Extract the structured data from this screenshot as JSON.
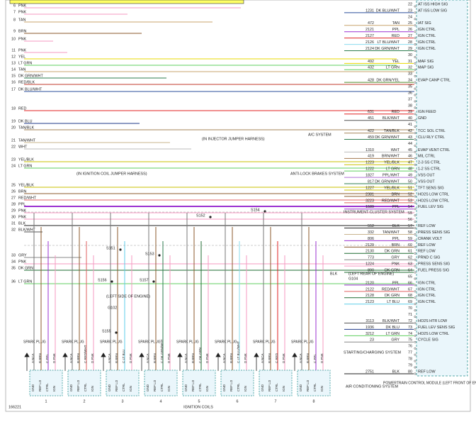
{
  "header": {
    "module": "POWERTRAIN CONTROL MODULE (LEFT FRONT OF ENGINE COMPT)",
    "figure_id": "166221",
    "coils_title": "IGNITION COILS"
  },
  "left_pins": [
    {
      "pin": 6,
      "color": "PNK"
    },
    {
      "pin": 7,
      "color": "PNK"
    },
    {
      "pin": 8,
      "color": "TAN"
    },
    {
      "pin": 9,
      "color": "BRN"
    },
    {
      "pin": 10,
      "color": "PNK"
    },
    {
      "pin": 11,
      "color": "PNK"
    },
    {
      "pin": 12,
      "color": "YEL"
    },
    {
      "pin": 13,
      "color": "LT GRN"
    },
    {
      "pin": 14,
      "color": "TAN"
    },
    {
      "pin": 15,
      "color": "DK GRN/WHT"
    },
    {
      "pin": 16,
      "color": "RED/BLK"
    },
    {
      "pin": 17,
      "color": "DK BLU/WHT"
    },
    {
      "pin": 18,
      "color": "RED"
    },
    {
      "pin": 19,
      "color": "DK BLU"
    },
    {
      "pin": 20,
      "color": "TAN/BLK"
    },
    {
      "pin": 21,
      "color": "TAN/WHT"
    },
    {
      "pin": 22,
      "color": "WHT"
    },
    {
      "pin": 23,
      "color": "YEL/BLK"
    },
    {
      "pin": 24,
      "color": "LT GRN"
    },
    {
      "pin": 25,
      "color": "YEL/BLK"
    },
    {
      "pin": 26,
      "color": "BRN"
    },
    {
      "pin": 27,
      "color": "RED/WHT"
    },
    {
      "pin": 28,
      "color": "PPL"
    },
    {
      "pin": 29,
      "color": "PNK"
    },
    {
      "pin": 30,
      "color": "PNK"
    },
    {
      "pin": 31,
      "color": "BLK"
    },
    {
      "pin": 32,
      "color": "BLK/WHT"
    },
    {
      "pin": 33,
      "color": "GRY"
    },
    {
      "pin": 34,
      "color": "PNK"
    },
    {
      "pin": 35,
      "color": "DK GRN"
    },
    {
      "pin": 36,
      "color": "LT GRN"
    }
  ],
  "pcm_pins": [
    {
      "pin": 22,
      "function": "AT ISS HIGH SIG"
    },
    {
      "pin": 23,
      "circuit": "1231",
      "color": "DK BLU/WHT",
      "function": "AT ISS LOW SIG"
    },
    {
      "pin": 24
    },
    {
      "pin": 25,
      "circuit": "472",
      "color": "TAN",
      "function": "IAT SIG"
    },
    {
      "pin": 26,
      "circuit": "2121",
      "color": "PPL",
      "function": "IGN CTRL"
    },
    {
      "pin": 27,
      "circuit": "2127",
      "color": "RED",
      "function": "IGN CTRL"
    },
    {
      "pin": 28,
      "circuit": "2126",
      "color": "LT BLU/WHT",
      "function": "IGN CTRL"
    },
    {
      "pin": 29,
      "circuit": "2124",
      "color": "DK GRN/WHT",
      "function": "IGN CTRL"
    },
    {
      "pin": 30
    },
    {
      "pin": 31,
      "circuit": "492",
      "color": "YEL",
      "function": "MAF SIG"
    },
    {
      "pin": 32,
      "circuit": "432",
      "color": "LT GRN",
      "function": "MAP SIG"
    },
    {
      "pin": 33
    },
    {
      "pin": 34,
      "circuit": "428",
      "color": "DK GRN/YEL",
      "function": "EVAP CANP CTRL"
    },
    {
      "pin": 35
    },
    {
      "pin": 36
    },
    {
      "pin": 37
    },
    {
      "pin": 38
    },
    {
      "pin": 39,
      "circuit": "631",
      "color": "RED",
      "function": "IGN FEED"
    },
    {
      "pin": 40,
      "circuit": "451",
      "color": "BLK/WHT",
      "function": "GND"
    },
    {
      "pin": 41
    },
    {
      "pin": 42,
      "circuit": "422",
      "color": "TAN/BLK",
      "function": "TCC SOL CTRL"
    },
    {
      "pin": 43,
      "circuit": "459",
      "color": "DK GRN/WHT",
      "function": "CLU RLY CTRL"
    },
    {
      "pin": 44
    },
    {
      "pin": 45,
      "circuit": "1310",
      "color": "WHT",
      "function": "EVAP VENT CTRL"
    },
    {
      "pin": 46,
      "circuit": "419",
      "color": "BRN/WHT",
      "function": "MIL CTRL"
    },
    {
      "pin": 47,
      "circuit": "1223",
      "color": "YEL/BLK",
      "function": "2-3 SS CTRL"
    },
    {
      "pin": 48,
      "circuit": "1222",
      "color": "LT GRN",
      "function": "1-2 SS CTRL"
    },
    {
      "pin": 49,
      "circuit": "1827",
      "color": "PPL/WHT",
      "function": "VSS OUT"
    },
    {
      "pin": 50,
      "circuit": "817",
      "color": "DK GRN/WHT",
      "function": "VSS OUT"
    },
    {
      "pin": 51,
      "circuit": "1227",
      "color": "YEL/BLK",
      "function": "TFT SENS SIG"
    },
    {
      "pin": 52,
      "circuit": "2381",
      "color": "BRN",
      "function": "HO2S LOW CTRL"
    },
    {
      "pin": 53,
      "circuit": "3223",
      "color": "RED/WHT",
      "function": "HO2S LOW CTRL"
    },
    {
      "pin": 54,
      "circuit": "1589",
      "color": "PPL",
      "function": "FUEL LEV SIG"
    },
    {
      "pin": 55
    },
    {
      "pin": 56
    },
    {
      "pin": 57,
      "circuit": "552",
      "color": "BLK",
      "function": "REF LOW"
    },
    {
      "pin": 58,
      "circuit": "332",
      "color": "TAN/WHT",
      "function": "PRESS SENS SIG"
    },
    {
      "pin": 59,
      "circuit": "806",
      "color": "PPL",
      "function": "CRANK VOLT"
    },
    {
      "pin": 60,
      "circuit": "2129",
      "color": "BRN",
      "function": "REF LOW"
    },
    {
      "pin": 61,
      "circuit": "2130",
      "color": "DK GRN",
      "function": "REF LOW"
    },
    {
      "pin": 62,
      "circuit": "773",
      "color": "GRY",
      "function": "PRND C SIG"
    },
    {
      "pin": 63,
      "circuit": "1224",
      "color": "PNK",
      "function": "PRESS SENS SIG"
    },
    {
      "pin": 64,
      "circuit": "890",
      "color": "DK GRN",
      "function": "FUEL PRESS SIG"
    },
    {
      "pin": 65
    },
    {
      "pin": 66,
      "circuit": "2120",
      "color": "PPL",
      "function": "IGN CTRL"
    },
    {
      "pin": 67,
      "circuit": "2122",
      "color": "RED/WHT",
      "function": "IGN CTRL"
    },
    {
      "pin": 68,
      "circuit": "2128",
      "color": "DK GRN",
      "function": "IGN CTRL"
    },
    {
      "pin": 69,
      "circuit": "2123",
      "color": "LT BLU",
      "function": "IGN CTRL"
    },
    {
      "pin": 70
    },
    {
      "pin": 71
    },
    {
      "pin": 72,
      "circuit": "3113",
      "color": "BLK/WHT",
      "function": "HO2S HTR LOW"
    },
    {
      "pin": 73,
      "circuit": "1936",
      "color": "DK BLU",
      "function": "FUEL LEV SENS SIG"
    },
    {
      "pin": 74,
      "circuit": "3212",
      "color": "LT GRN",
      "function": "HO2S LOW CTRL"
    },
    {
      "pin": 75,
      "circuit": "23",
      "color": "GRY",
      "function": "CYCLE SIG"
    },
    {
      "pin": 76
    },
    {
      "pin": 77
    },
    {
      "pin": 78
    },
    {
      "pin": 79
    },
    {
      "pin": 80,
      "circuit": "2751",
      "color": "BLK",
      "function": "REF LOW"
    }
  ],
  "coils": [
    {
      "number": "1",
      "label": "SPARK PLUG",
      "wires": [
        "A NCA",
        "B BRN",
        "C PPL",
        "D PNK"
      ],
      "terminals": [
        "GND",
        "REF LO",
        "CTRL",
        "IGN"
      ]
    },
    {
      "number": "2",
      "label": "SPARK PLUG",
      "wires": [
        "A NCA",
        "B BRN",
        "C RED/WHT",
        "D PNK"
      ],
      "terminals": [
        "GND",
        "REF LO",
        "CTRL",
        "IGN"
      ]
    },
    {
      "number": "3",
      "label": "SPARK PLUG",
      "wires": [
        "A NCA",
        "B BRN",
        "C LT BLU",
        "D PNK"
      ],
      "terminals": [
        "GND",
        "REF LO",
        "CTRL",
        "IGN"
      ]
    },
    {
      "number": "4",
      "label": "SPARK PLUG",
      "wires": [
        "A NCA",
        "B BRN",
        "C DK GRN/WHT",
        "D PNK"
      ],
      "terminals": [
        "GND",
        "REF LO",
        "CTRL",
        "IGN"
      ]
    },
    {
      "number": "5",
      "label": "SPARK PLUG",
      "wires": [
        "A NCA",
        "B BRN",
        "C DK GRN",
        "D PNK"
      ],
      "terminals": [
        "GND",
        "REF LO",
        "CTRL",
        "IGN"
      ]
    },
    {
      "number": "6",
      "label": "SPARK PLUG",
      "wires": [
        "A NCA",
        "B BRN",
        "C LT BLU/WHT",
        "D PNK"
      ],
      "terminals": [
        "GND",
        "REF LO",
        "CTRL",
        "IGN"
      ]
    },
    {
      "number": "7",
      "label": "SPARK PLUG",
      "wires": [
        "A NCA",
        "B BRN",
        "C RED",
        "D PNK"
      ],
      "terminals": [
        "GND",
        "REF LO",
        "CTRL",
        "IGN"
      ]
    },
    {
      "number": "8",
      "label": "SPARK PLUG",
      "wires": [
        "A NCA",
        "B BRN",
        "C PPL",
        "D PNK"
      ],
      "terminals": [
        "GND",
        "REF LO",
        "CTRL",
        "IGN"
      ]
    }
  ],
  "annotations": {
    "injector_harness": "(IN INJECTOR JUMPER HARNESS)",
    "coil_harness": "(IN IGNITION COIL JUMPER HARNESS)",
    "left_side": "(LEFT SIDE OF ENGINE)",
    "g102": "G102",
    "left_rear": "(LEFT REAR OF ENGINE)",
    "g104": "G104",
    "blk": "BLK",
    "ac_system": "A/C SYSTEM",
    "abs_system": "ANTI-LOCK BRAKES SYSTEM",
    "cluster": "INSTRUMENT CLUSTER SYSTEM",
    "charging": "STARTING/CHARGING SYSTEM",
    "aircon": "AIR CONDITIONING SYSTEM"
  },
  "splices": [
    "S151",
    "S152",
    "S153",
    "S154",
    "S155",
    "S156",
    "S157"
  ]
}
